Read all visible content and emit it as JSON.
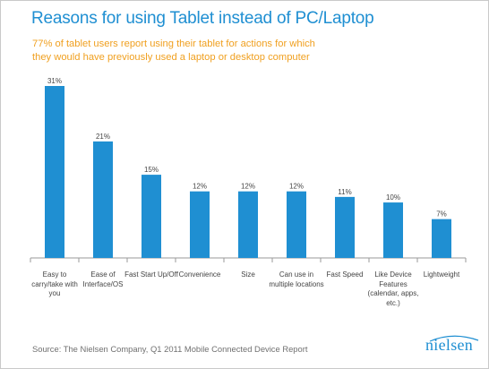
{
  "chart_data": {
    "type": "bar",
    "title": "Reasons for using Tablet instead of PC/Laptop",
    "subtitle": "77% of tablet users report using their tablet for actions for which they would have previously used a laptop or desktop computer",
    "categories": [
      "Easy to carry/take with you",
      "Ease of Interface/OS",
      "Fast Start Up/Off",
      "Convenience",
      "Size",
      "Can use in multiple locations",
      "Fast Speed",
      "Like Device Features (calendar, apps, etc.)",
      "Lightweight"
    ],
    "values": [
      31,
      21,
      15,
      12,
      12,
      12,
      11,
      10,
      7
    ],
    "data_labels": [
      "31%",
      "21%",
      "15%",
      "12%",
      "12%",
      "12%",
      "11%",
      "10%",
      "7%"
    ],
    "ylim": [
      0,
      31
    ],
    "bar_color": "#1f8fd2",
    "grid": false,
    "legend": "none"
  },
  "source": "Source: The Nielsen Company, Q1 2011 Mobile Connected Device Report",
  "logo_text": "nielsen",
  "colors": {
    "title": "#1f8fd2",
    "subtitle": "#f0a020",
    "axis": "#9a9a9a",
    "text": "#444444"
  }
}
